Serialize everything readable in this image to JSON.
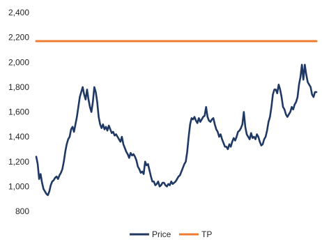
{
  "chart_data": {
    "type": "line",
    "title": "",
    "xlabel": "",
    "ylabel": "",
    "ylim": [
      800,
      2400
    ],
    "yticks": [
      800,
      1000,
      1200,
      1400,
      1600,
      1800,
      2000,
      2200,
      2400
    ],
    "ytick_labels": [
      "800",
      "1,000",
      "1,200",
      "1,400",
      "1,600",
      "1,800",
      "2,000",
      "2,200",
      "2,400"
    ],
    "grid": false,
    "legend_position": "bottom",
    "series": [
      {
        "name": "Price",
        "color": "#1f3864",
        "values": [
          1240,
          1180,
          1060,
          1100,
          1030,
          980,
          960,
          940,
          930,
          960,
          1010,
          1040,
          1050,
          1070,
          1080,
          1060,
          1090,
          1110,
          1140,
          1200,
          1280,
          1340,
          1380,
          1400,
          1460,
          1480,
          1440,
          1500,
          1560,
          1640,
          1720,
          1760,
          1800,
          1740,
          1700,
          1780,
          1700,
          1640,
          1600,
          1680,
          1800,
          1760,
          1680,
          1560,
          1500,
          1470,
          1500,
          1460,
          1480,
          1450,
          1490,
          1460,
          1430,
          1440,
          1410,
          1420,
          1400,
          1380,
          1360,
          1400,
          1340,
          1310,
          1280,
          1260,
          1230,
          1270,
          1250,
          1260,
          1240,
          1210,
          1160,
          1140,
          1110,
          1120,
          1100,
          1200,
          1170,
          1180,
          1130,
          1080,
          1040,
          1040,
          1010,
          1020,
          1040,
          1000,
          1010,
          1030,
          1030,
          1010,
          1000,
          1020,
          1010,
          1040,
          1020,
          1030,
          1040,
          1060,
          1080,
          1090,
          1120,
          1150,
          1180,
          1200,
          1280,
          1400,
          1500,
          1550,
          1540,
          1560,
          1530,
          1510,
          1550,
          1520,
          1540,
          1560,
          1570,
          1640,
          1560,
          1530,
          1520,
          1540,
          1550,
          1500,
          1460,
          1440,
          1400,
          1420,
          1380,
          1350,
          1320,
          1320,
          1300,
          1340,
          1320,
          1360,
          1390,
          1370,
          1400,
          1440,
          1450,
          1470,
          1500,
          1600,
          1480,
          1420,
          1400,
          1380,
          1430,
          1390,
          1400,
          1380,
          1420,
          1400,
          1360,
          1330,
          1340,
          1380,
          1400,
          1450,
          1520,
          1560,
          1640,
          1740,
          1780,
          1780,
          1750,
          1820,
          1780,
          1720,
          1640,
          1620,
          1580,
          1560,
          1580,
          1600,
          1640,
          1620,
          1660,
          1680,
          1720,
          1820,
          1880,
          1980,
          1860,
          1980,
          1900,
          1840,
          1820,
          1800,
          1740,
          1720,
          1760,
          1760
        ]
      },
      {
        "name": "TP",
        "color": "#ed7d31",
        "values": [
          2170,
          2170,
          2170,
          2170,
          2170,
          2170,
          2170,
          2170,
          2170,
          2170,
          2170,
          2170,
          2170,
          2170,
          2170,
          2170,
          2170,
          2170,
          2170,
          2170,
          2170,
          2170,
          2170,
          2170,
          2170,
          2170,
          2170,
          2170,
          2170,
          2170,
          2170,
          2170,
          2170,
          2170,
          2170,
          2170,
          2170,
          2170,
          2170,
          2170,
          2170,
          2170,
          2170,
          2170,
          2170,
          2170,
          2170,
          2170,
          2170,
          2170,
          2170,
          2170,
          2170,
          2170,
          2170,
          2170,
          2170,
          2170,
          2170,
          2170,
          2170,
          2170,
          2170,
          2170,
          2170,
          2170,
          2170,
          2170,
          2170,
          2170,
          2170,
          2170,
          2170,
          2170,
          2170,
          2170,
          2170,
          2170,
          2170,
          2170,
          2170,
          2170,
          2170,
          2170,
          2170,
          2170,
          2170,
          2170,
          2170,
          2170,
          2170,
          2170,
          2170,
          2170,
          2170,
          2170,
          2170,
          2170,
          2170,
          2170,
          2170,
          2170,
          2170,
          2170,
          2170,
          2170,
          2170,
          2170,
          2170,
          2170,
          2170,
          2170,
          2170,
          2170,
          2170,
          2170,
          2170,
          2170,
          2170,
          2170,
          2170,
          2170,
          2170,
          2170,
          2170,
          2170,
          2170,
          2170,
          2170,
          2170,
          2170,
          2170,
          2170,
          2170,
          2170,
          2170,
          2170,
          2170,
          2170,
          2170,
          2170,
          2170,
          2170,
          2170,
          2170,
          2170,
          2170,
          2170,
          2170,
          2170,
          2170,
          2170,
          2170,
          2170,
          2170,
          2170,
          2170,
          2170,
          2170,
          2170,
          2170,
          2170,
          2170,
          2170,
          2170,
          2170,
          2170,
          2170,
          2170,
          2170,
          2170,
          2170,
          2170,
          2170,
          2170,
          2170,
          2170,
          2170,
          2170,
          2170,
          2170,
          2170,
          2170,
          2170,
          2170,
          2170,
          2170,
          2170,
          2170,
          2170,
          2170,
          2170,
          2170,
          2170,
          2170,
          2170,
          2170,
          2170
        ]
      }
    ]
  }
}
